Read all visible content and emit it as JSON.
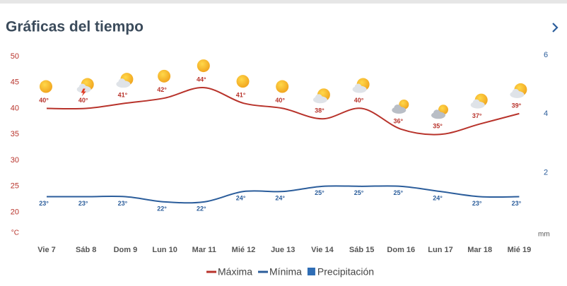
{
  "header": {
    "title": "Gráficas del tiempo"
  },
  "chart_data": {
    "type": "line",
    "categories": [
      "Vie 7",
      "Sáb 8",
      "Dom 9",
      "Lun 10",
      "Mar 11",
      "Mié 12",
      "Jue 13",
      "Vie 14",
      "Sáb 15",
      "Dom 16",
      "Lun 17",
      "Mar 18",
      "Mié 19"
    ],
    "series": [
      {
        "name": "Máxima",
        "color": "#b8332b",
        "values": [
          40,
          40,
          41,
          42,
          44,
          41,
          40,
          38,
          40,
          36,
          35,
          37,
          39
        ],
        "value_labels": [
          "40°",
          "40°",
          "41°",
          "42°",
          "44°",
          "41°",
          "40°",
          "38°",
          "40°",
          "36°",
          "35°",
          "37°",
          "39°"
        ]
      },
      {
        "name": "Mínima",
        "color": "#2b5d9b",
        "values": [
          23,
          23,
          23,
          22,
          22,
          24,
          24,
          25,
          25,
          25,
          24,
          23,
          23
        ],
        "value_labels": [
          "23°",
          "23°",
          "23°",
          "22°",
          "22°",
          "24°",
          "24°",
          "25°",
          "25°",
          "25°",
          "24°",
          "23°",
          "23°"
        ]
      },
      {
        "name": "Precipitación",
        "color": "#2f6db5",
        "axis": "y2",
        "values": [
          0,
          0,
          0,
          0,
          0,
          0,
          0,
          0,
          0,
          0,
          0,
          0,
          0
        ]
      }
    ],
    "ylabel": "°C",
    "ylim": [
      16,
      50
    ],
    "yticks": [
      20,
      25,
      30,
      35,
      40,
      45,
      50
    ],
    "y2label": "mm",
    "y2lim": [
      0,
      6
    ],
    "y2ticks": [
      2,
      4,
      6
    ],
    "grid": false
  }
}
